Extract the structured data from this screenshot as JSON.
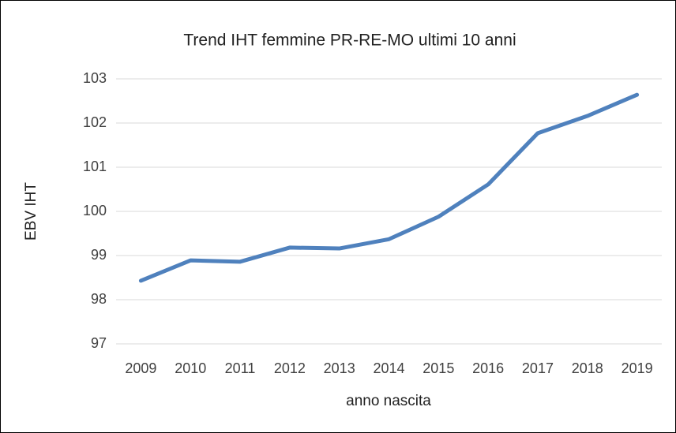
{
  "chart_data": {
    "type": "line",
    "title": "Trend IHT femmine PR-RE-MO ultimi 10 anni",
    "x_label": "anno nascita",
    "y_label": "EBV IHT",
    "categories": [
      "2009",
      "2010",
      "2011",
      "2012",
      "2013",
      "2014",
      "2015",
      "2016",
      "2017",
      "2018",
      "2019"
    ],
    "series": [
      {
        "name": "EBV IHT",
        "color": "#4f81bd",
        "values": [
          98.43,
          98.89,
          98.86,
          99.18,
          99.16,
          99.37,
          99.88,
          100.61,
          101.77,
          102.16,
          102.64
        ]
      }
    ],
    "ylim": [
      97,
      103
    ],
    "yticks": [
      97,
      98,
      99,
      100,
      101,
      102,
      103
    ],
    "grid": true
  }
}
